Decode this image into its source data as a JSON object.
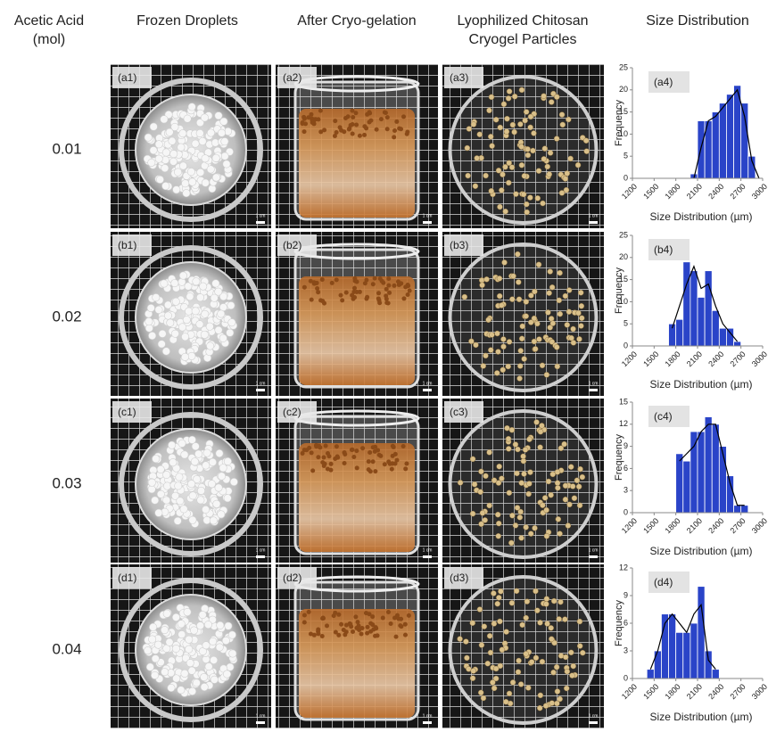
{
  "headers": [
    {
      "lines": [
        "Acetic Acid",
        "(mol)"
      ]
    },
    {
      "lines": [
        "Frozen Droplets"
      ]
    },
    {
      "lines": [
        "After Cryo-gelation"
      ]
    },
    {
      "lines": [
        "Lyophilized  Chitosan",
        "Cryogel Particles"
      ]
    },
    {
      "lines": [
        "Size Distribution"
      ]
    }
  ],
  "rows": [
    {
      "label": "0.01",
      "panels": [
        "(a1)",
        "(a2)",
        "(a3)"
      ]
    },
    {
      "label": "0.02",
      "panels": [
        "(b1)",
        "(b2)",
        "(b3)"
      ]
    },
    {
      "label": "0.03",
      "panels": [
        "(c1)",
        "(c2)",
        "(c3)"
      ]
    },
    {
      "label": "0.04",
      "panels": [
        "(d1)",
        "(d2)",
        "(d3)"
      ]
    }
  ],
  "scale_bar": "1 cm",
  "chart_data": [
    {
      "type": "histogram",
      "label": "(a4)",
      "xlabel": "Size Distribution (µm)",
      "ylabel": "Frequency",
      "color": "#2a44c8",
      "bins": [
        2000,
        2100,
        2200,
        2300,
        2400,
        2500,
        2600,
        2700,
        2800,
        2900
      ],
      "values": [
        1,
        13,
        13,
        15,
        17,
        19,
        21,
        17,
        5
      ],
      "line": {
        "color": "#000000",
        "x": [
          2050,
          2150,
          2250,
          2350,
          2450,
          2550,
          2650,
          2750,
          2850,
          2950
        ],
        "values": [
          0,
          7,
          13,
          14,
          16,
          18,
          20,
          14,
          4,
          0
        ]
      },
      "xlim": [
        1200,
        3000
      ],
      "xticks": [
        1200,
        1500,
        1800,
        2100,
        2400,
        2700,
        3000
      ],
      "ylim": [
        0,
        25
      ],
      "yticks": [
        0,
        5,
        10,
        15,
        20,
        25
      ]
    },
    {
      "type": "histogram",
      "label": "(b4)",
      "xlabel": "Size Distribution (µm)",
      "ylabel": "Frequency",
      "color": "#2a44c8",
      "bins": [
        1700,
        1800,
        1900,
        2000,
        2100,
        2200,
        2300,
        2400,
        2500,
        2600,
        2700
      ],
      "values": [
        5,
        6,
        19,
        17,
        11,
        17,
        8,
        4,
        4,
        1
      ],
      "line": {
        "color": "#000000",
        "x": [
          1750,
          1850,
          1950,
          2050,
          2150,
          2250,
          2350,
          2450,
          2550,
          2650
        ],
        "values": [
          4,
          9,
          14,
          18,
          13,
          14,
          9,
          5,
          3,
          1
        ]
      },
      "xlim": [
        1200,
        3000
      ],
      "xticks": [
        1200,
        1500,
        1800,
        2100,
        2400,
        2700,
        3000
      ],
      "ylim": [
        0,
        25
      ],
      "yticks": [
        0,
        5,
        10,
        15,
        20,
        25
      ]
    },
    {
      "type": "histogram",
      "label": "(c4)",
      "xlabel": "Size Distribution (µm)",
      "ylabel": "Frequency",
      "color": "#2a44c8",
      "bins": [
        1800,
        1900,
        2000,
        2100,
        2200,
        2300,
        2400,
        2500,
        2600,
        2700,
        2800
      ],
      "values": [
        8,
        7,
        11,
        11,
        13,
        12,
        9,
        5,
        1,
        1
      ],
      "line": {
        "color": "#000000",
        "x": [
          1850,
          1950,
          2050,
          2150,
          2250,
          2350,
          2450,
          2550,
          2650,
          2750
        ],
        "values": [
          7,
          8,
          9,
          11,
          12,
          12,
          8,
          4,
          1,
          1
        ]
      },
      "xlim": [
        1200,
        3000
      ],
      "xticks": [
        1200,
        1500,
        1800,
        2100,
        2400,
        2700,
        3000
      ],
      "ylim": [
        0,
        15
      ],
      "yticks": [
        0,
        3,
        6,
        9,
        12,
        15
      ]
    },
    {
      "type": "histogram",
      "label": "(d4)",
      "xlabel": "Size Distribution (µm)",
      "ylabel": "Frequency",
      "color": "#2a44c8",
      "bins": [
        1400,
        1500,
        1600,
        1700,
        1800,
        1900,
        2000,
        2100,
        2200,
        2300,
        2400
      ],
      "values": [
        1,
        3,
        7,
        7,
        5,
        5,
        6,
        10,
        3,
        1
      ],
      "line": {
        "color": "#000000",
        "x": [
          1450,
          1550,
          1650,
          1750,
          1850,
          1950,
          2050,
          2150,
          2250,
          2350
        ],
        "values": [
          1,
          3,
          6,
          7,
          6,
          5,
          7,
          8,
          2,
          1
        ]
      },
      "xlim": [
        1200,
        3000
      ],
      "xticks": [
        1200,
        1500,
        1800,
        2100,
        2400,
        2700,
        3000
      ],
      "ylim": [
        0,
        12
      ],
      "yticks": [
        0,
        3,
        6,
        9,
        12
      ]
    }
  ]
}
